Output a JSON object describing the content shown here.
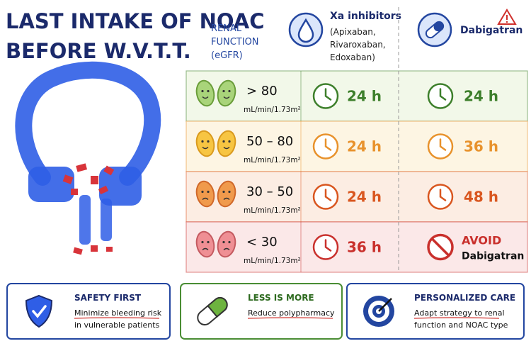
{
  "header": {
    "title_lines": [
      "LAST INTAKE OF NOAC",
      "BEFORE W.V.T.T."
    ],
    "renal_function_lines": [
      "RENAL",
      "FUNCTION",
      "(eGFR)"
    ],
    "xa": {
      "title": "Xa inhibitors",
      "drug_lines": [
        "(Apixaban,",
        "Rivaroxaban,",
        "Edoxaban)"
      ]
    },
    "dabigatran": {
      "title": "Dabigatran"
    }
  },
  "table": {
    "rows": [
      {
        "egfr": "> 80",
        "unit": "mL/min/1.73m²",
        "xa": "24 h",
        "dabigatran": "24 h"
      },
      {
        "egfr": "50 – 80",
        "unit": "mL/min/1.73m²",
        "xa": "24 h",
        "dabigatran": "36 h"
      },
      {
        "egfr": "30 – 50",
        "unit": "mL/min/1.73m²",
        "xa": "24 h",
        "dabigatran": "48 h"
      },
      {
        "egfr": "< 30",
        "unit": "mL/min/1.73m²",
        "xa": "36 h",
        "dabigatran": "AVOID",
        "dabigatran_note": "Dabigatran"
      }
    ]
  },
  "cards": [
    {
      "title": "SAFETY FIRST",
      "lines": [
        "Minimize bleeding risk",
        "in vulnerable patients"
      ]
    },
    {
      "title": "LESS IS MORE",
      "lines": [
        "Reduce polypharmacy"
      ]
    },
    {
      "title": "PERSONALIZED CARE",
      "lines": [
        "Adapt strategy to renal",
        "function and NOAC type"
      ]
    }
  ]
}
